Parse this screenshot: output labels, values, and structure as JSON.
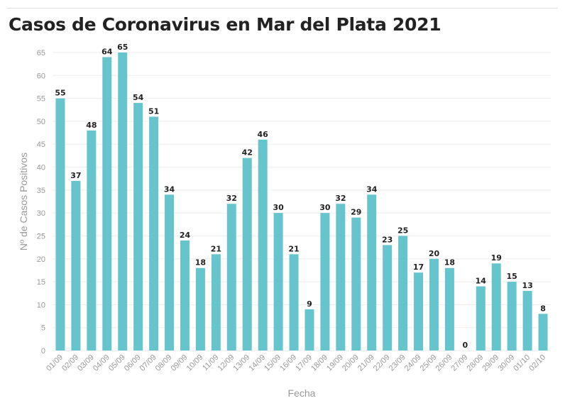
{
  "title": "Casos de Coronavirus en Mar del Plata 2021",
  "colors": {
    "bar": "#66C4CC",
    "grid": "#eeeeee",
    "tick": "#999999"
  },
  "chart_data": {
    "type": "bar",
    "title": "Casos de Coronavirus en Mar del Plata 2021",
    "xlabel": "Fecha",
    "ylabel": "Nº de Casos Positivos",
    "ylim": [
      0,
      65
    ],
    "yticks": [
      0,
      5,
      10,
      15,
      20,
      25,
      30,
      35,
      40,
      45,
      50,
      55,
      60,
      65
    ],
    "grid": true,
    "categories": [
      "01/09",
      "02/09",
      "03/09",
      "04/09",
      "05/09",
      "06/09",
      "07/09",
      "08/09",
      "09/09",
      "10/09",
      "11/09",
      "12/09",
      "13/09",
      "14/09",
      "15/09",
      "16/09",
      "17/09",
      "18/09",
      "19/09",
      "20/09",
      "21/09",
      "22/09",
      "23/09",
      "24/09",
      "25/09",
      "26/09",
      "27/09",
      "28/09",
      "29/09",
      "30/09",
      "01/10",
      "02/10"
    ],
    "values": [
      55,
      37,
      48,
      64,
      65,
      54,
      51,
      34,
      24,
      18,
      21,
      32,
      42,
      46,
      30,
      21,
      9,
      30,
      32,
      29,
      34,
      23,
      25,
      17,
      20,
      18,
      0,
      14,
      19,
      15,
      13,
      8
    ]
  }
}
